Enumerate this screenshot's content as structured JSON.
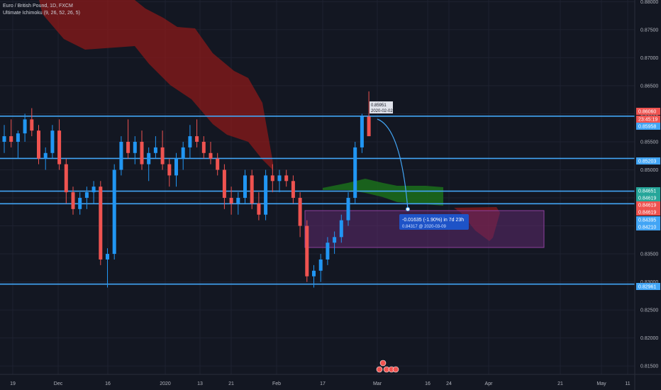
{
  "symbol": {
    "title": "Euro / British Pound, 1D, FXCM",
    "indicator": "Ultimate Ichimoku (9, 26, 52, 26, 5)"
  },
  "colors": {
    "background": "#131722",
    "grid": "#1e2230",
    "up": "#2196f3",
    "down": "#ef5350",
    "cloud_bear": "#8b1a1a",
    "cloud_bull": "#1b6e1b",
    "hline": "#42a5f5",
    "range_box": "#5e2a6e",
    "axis_text": "#b2b5be"
  },
  "price_axis": {
    "ticks": [
      "0.88000",
      "0.87500",
      "0.87000",
      "0.86500",
      "0.86000",
      "0.85500",
      "0.85000",
      "0.84500",
      "0.84000",
      "0.83500",
      "0.83000",
      "0.82500",
      "0.82000",
      "0.81500"
    ],
    "min": 0.8135,
    "max": 0.8803
  },
  "time_axis": {
    "ticks": [
      "19",
      "Dec",
      "16",
      "2020",
      "13",
      "21",
      "Feb",
      "17",
      "Mar",
      "16",
      "24",
      "Apr",
      "21",
      "May",
      "11"
    ]
  },
  "price_badges": [
    {
      "text": "0.86060",
      "color": "#ef5350"
    },
    {
      "text": "23:45:19",
      "color": "#ef5350"
    },
    {
      "text": "0.85958",
      "color": "#42a5f5"
    },
    {
      "text": "0.85203",
      "color": "#42a5f5"
    },
    {
      "text": "0.84651",
      "color": "#26a69a"
    },
    {
      "text": "0.84619",
      "color": "#26a69a"
    },
    {
      "text": "0.84619",
      "color": "#ef5350"
    },
    {
      "text": "0.84619",
      "color": "#ef5350"
    },
    {
      "text": "0.84395",
      "color": "#42a5f5"
    },
    {
      "text": "0.84210",
      "color": "#42a5f5"
    },
    {
      "text": "0.82961",
      "color": "#42a5f5"
    }
  ],
  "annotations": {
    "tooltip_main": "-0.01635 (-1.90%) in 7d 23h",
    "tooltip_sub": "0.84317 @ 2020-03-09",
    "top_label_1": "0.85951",
    "top_label_2": "2020-02-02"
  },
  "chart_data": {
    "type": "candlestick",
    "title": "Euro / British Pound, 1D, FXCM",
    "series": [
      {
        "name": "EURGBP",
        "ohlc": [
          [
            0.855,
            0.858,
            0.853,
            0.856
          ],
          [
            0.856,
            0.859,
            0.854,
            0.855
          ],
          [
            0.855,
            0.857,
            0.852,
            0.8565
          ],
          [
            0.8565,
            0.86,
            0.855,
            0.859
          ],
          [
            0.859,
            0.861,
            0.856,
            0.857
          ],
          [
            0.857,
            0.858,
            0.851,
            0.852
          ],
          [
            0.852,
            0.854,
            0.85,
            0.853
          ],
          [
            0.853,
            0.858,
            0.852,
            0.857
          ],
          [
            0.857,
            0.859,
            0.85,
            0.851
          ],
          [
            0.851,
            0.852,
            0.844,
            0.846
          ],
          [
            0.846,
            0.847,
            0.842,
            0.843
          ],
          [
            0.843,
            0.846,
            0.842,
            0.845
          ],
          [
            0.845,
            0.847,
            0.843,
            0.846
          ],
          [
            0.846,
            0.848,
            0.844,
            0.847
          ],
          [
            0.847,
            0.848,
            0.833,
            0.834
          ],
          [
            0.834,
            0.836,
            0.829,
            0.835
          ],
          [
            0.835,
            0.851,
            0.834,
            0.85
          ],
          [
            0.85,
            0.856,
            0.849,
            0.855
          ],
          [
            0.855,
            0.859,
            0.852,
            0.853
          ],
          [
            0.853,
            0.856,
            0.851,
            0.855
          ],
          [
            0.855,
            0.857,
            0.85,
            0.851
          ],
          [
            0.851,
            0.854,
            0.848,
            0.853
          ],
          [
            0.853,
            0.856,
            0.852,
            0.854
          ],
          [
            0.854,
            0.857,
            0.85,
            0.851
          ],
          [
            0.851,
            0.852,
            0.847,
            0.849
          ],
          [
            0.849,
            0.853,
            0.847,
            0.852
          ],
          [
            0.852,
            0.855,
            0.85,
            0.854
          ],
          [
            0.854,
            0.858,
            0.852,
            0.856
          ],
          [
            0.856,
            0.859,
            0.854,
            0.855
          ],
          [
            0.855,
            0.856,
            0.852,
            0.853
          ],
          [
            0.853,
            0.855,
            0.851,
            0.852
          ],
          [
            0.852,
            0.853,
            0.849,
            0.85
          ],
          [
            0.85,
            0.851,
            0.843,
            0.845
          ],
          [
            0.845,
            0.847,
            0.842,
            0.844
          ],
          [
            0.844,
            0.846,
            0.842,
            0.845
          ],
          [
            0.845,
            0.85,
            0.844,
            0.849
          ],
          [
            0.849,
            0.85,
            0.843,
            0.844
          ],
          [
            0.844,
            0.846,
            0.841,
            0.842
          ],
          [
            0.842,
            0.85,
            0.841,
            0.849
          ],
          [
            0.849,
            0.851,
            0.846,
            0.848
          ],
          [
            0.848,
            0.85,
            0.846,
            0.849
          ],
          [
            0.849,
            0.85,
            0.847,
            0.848
          ],
          [
            0.848,
            0.849,
            0.844,
            0.845
          ],
          [
            0.845,
            0.846,
            0.838,
            0.84
          ],
          [
            0.84,
            0.841,
            0.83,
            0.831
          ],
          [
            0.831,
            0.833,
            0.829,
            0.832
          ],
          [
            0.832,
            0.835,
            0.83,
            0.834
          ],
          [
            0.834,
            0.838,
            0.833,
            0.837
          ],
          [
            0.837,
            0.839,
            0.835,
            0.838
          ],
          [
            0.838,
            0.842,
            0.837,
            0.841
          ],
          [
            0.841,
            0.846,
            0.84,
            0.845
          ],
          [
            0.845,
            0.855,
            0.844,
            0.854
          ],
          [
            0.854,
            0.86,
            0.853,
            0.8595
          ],
          [
            0.8595,
            0.864,
            0.856,
            0.856
          ]
        ]
      }
    ],
    "horizontal_levels": [
      0.85958,
      0.85203,
      0.84619,
      0.84395,
      0.82961
    ],
    "ylim": [
      0.8135,
      0.8803
    ]
  }
}
